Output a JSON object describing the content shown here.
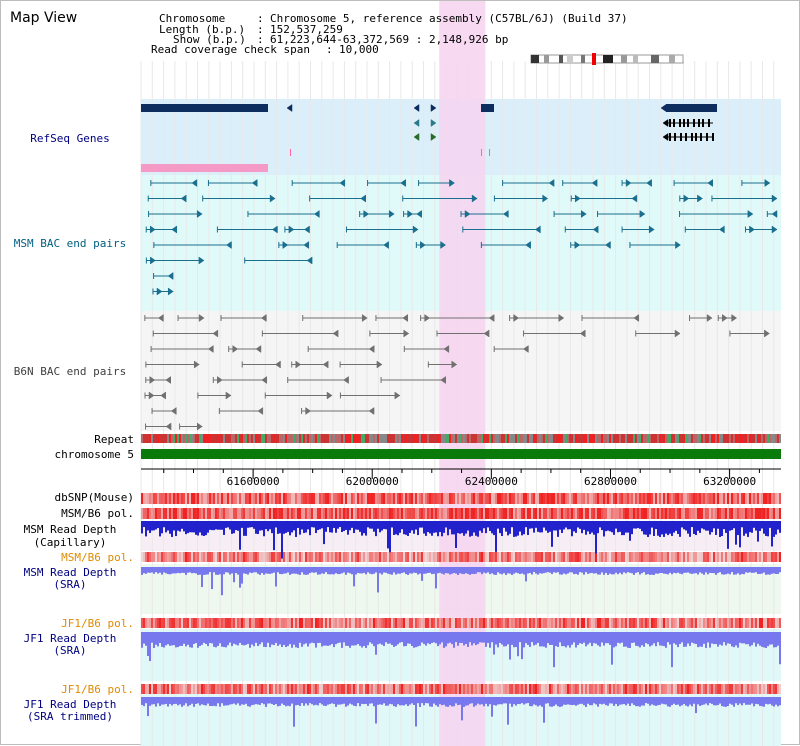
{
  "title": "Map View",
  "info": {
    "chromosome_label": "Chromosome",
    "chromosome_value": "Chromosome 5, reference assembly (C57BL/6J) (Build 37)",
    "length_label": "Length (b.p.)",
    "length_value": "152,537,259",
    "show_label": "Show (b.p.)",
    "show_value": "61,223,644-63,372,569 : 2,148,926 bp",
    "coverage_label": "Read coverage check span",
    "coverage_value": "10,000"
  },
  "tracks": {
    "refseq": "RefSeq Genes",
    "msm_bac": "MSM BAC end pairs",
    "b6n_bac": "B6N BAC end pairs",
    "repeat": "Repeat",
    "chromosome": "chromosome 5",
    "dbsnp": "dbSNP(Mouse)",
    "msm_b6_pol": "MSM/B6 pol.",
    "msm_depth_cap_1": "MSM Read Depth",
    "msm_depth_cap_2": "(Capillary)",
    "msm_b6_pol_2": "MSM/B6 pol.",
    "msm_depth_sra_1": "MSM Read Depth",
    "msm_depth_sra_2": "(SRA)",
    "jf1_b6_pol": "JF1/B6 pol.",
    "jf1_depth_sra_1": "JF1 Read Depth",
    "jf1_depth_sra_2": "(SRA)",
    "jf1_b6_pol_2": "JF1/B6 pol.",
    "jf1_depth_trim_1": "JF1 Read Depth",
    "jf1_depth_trim_2": "(SRA trimmed)"
  },
  "axis": {
    "ticks": [
      {
        "pos": 61600000,
        "label": "61600000"
      },
      {
        "pos": 62000000,
        "label": "62000000"
      },
      {
        "pos": 62400000,
        "label": "62400000"
      },
      {
        "pos": 62800000,
        "label": "62800000"
      },
      {
        "pos": 63200000,
        "label": "63200000"
      }
    ],
    "start": 61223644,
    "end": 63372569
  },
  "highlight": {
    "start": 62225000,
    "end": 62380000
  },
  "colors": {
    "refseq_bg": "#dbeffa",
    "msm_bg": "#e0fafa",
    "b6n_bg": "#f5f5f5",
    "highlight": "#f6d3f0",
    "gene": "#0d2d5e",
    "msm_feature": "#1a6e8e",
    "b6n_feature": "#707070",
    "chrom_bar": "#0a7a0a",
    "depth_blue": "#2222cc",
    "sra_blue": "#7777ee",
    "label_navy": "#000080",
    "label_teal": "#006080",
    "label_orange": "#e08a00"
  },
  "icons": [
    "chromosome-ideogram-icon",
    "gene-arrow-icon",
    "bac-pair-icon"
  ]
}
